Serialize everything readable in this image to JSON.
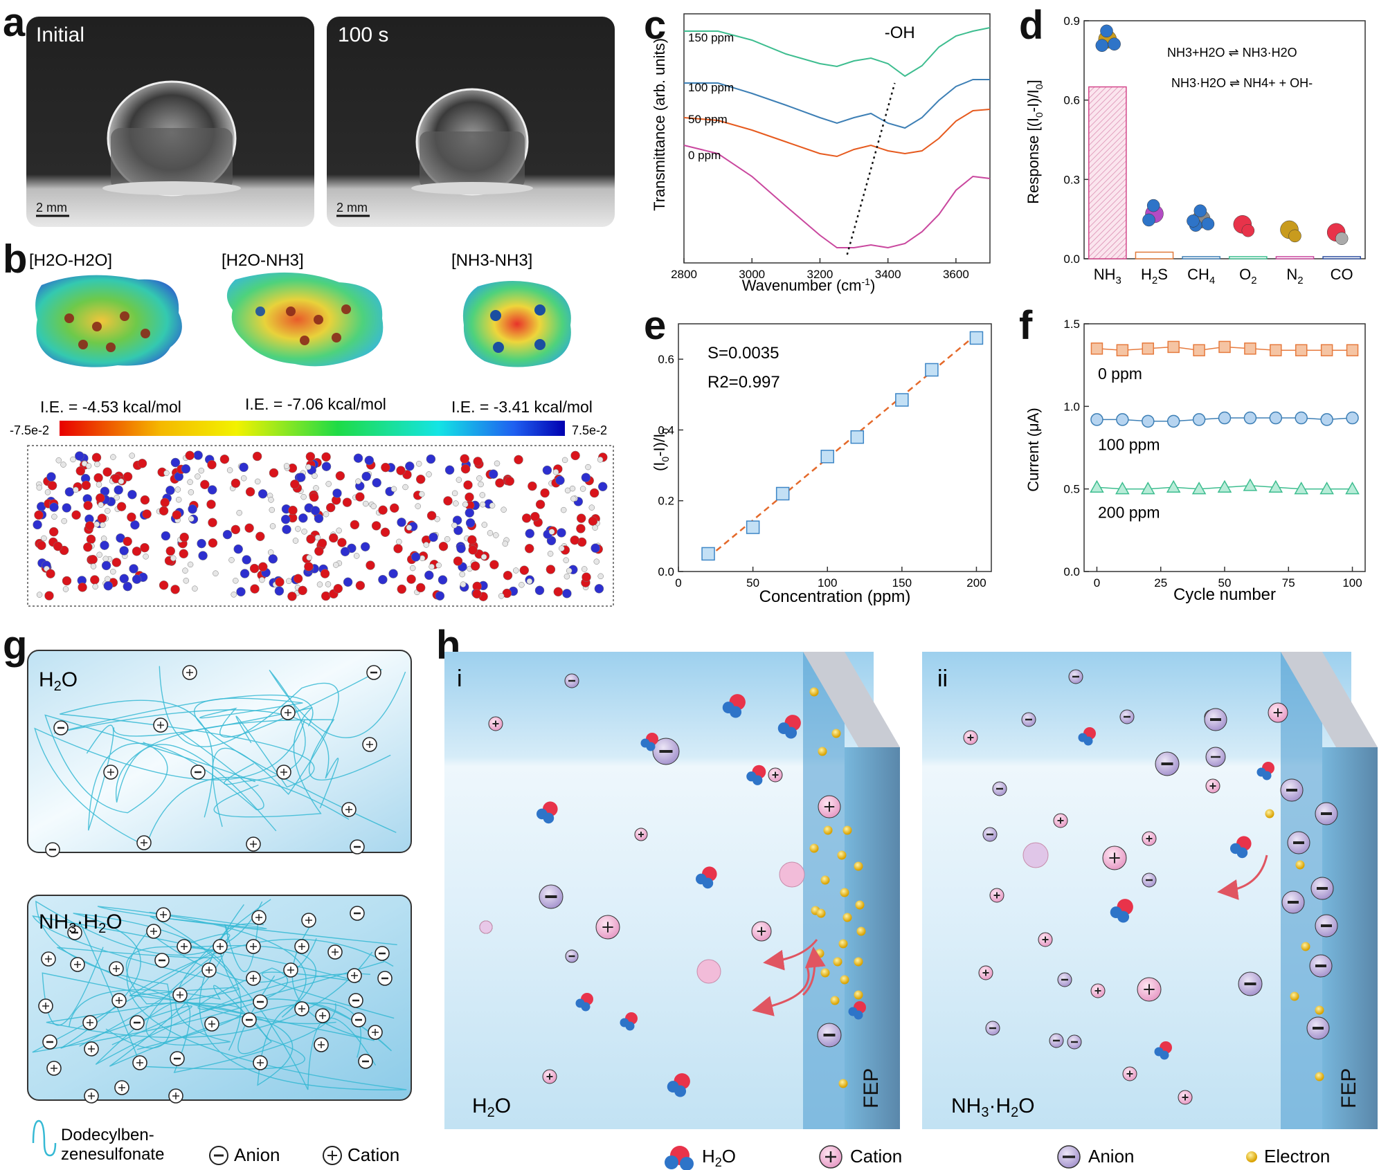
{
  "panels": {
    "a": {
      "label": "a",
      "left_title": "Initial",
      "right_title": "100 s",
      "scalebar": "2 mm"
    },
    "b": {
      "label": "b",
      "clusters": [
        {
          "title": "[H2O-H2O]",
          "ie": "I.E. = -4.53 kcal/mol"
        },
        {
          "title": "[H2O-NH3]",
          "ie": "I.E. = -7.06 kcal/mol"
        },
        {
          "title": "[NH3-NH3]",
          "ie": "I.E. = -3.41 kcal/mol"
        }
      ],
      "colorbar": {
        "min": "-7.5e-2",
        "max": "7.5e-2"
      }
    },
    "g": {
      "label": "g",
      "box1": "H2O",
      "box2": "NH3·H2O",
      "legend": {
        "chain": "Dodecylben-zenesulfonate",
        "chain_line1": "Dodecylben-",
        "chain_line2": "zenesulfonate",
        "anion": "Anion",
        "cation": "Cation"
      }
    },
    "h": {
      "label": "h",
      "sub_i": "i",
      "sub_ii": "ii",
      "bottom_i": "H2O",
      "bottom_ii": "NH3·H2O",
      "fep": "FEP",
      "legend": {
        "water": "H2O",
        "cation": "Cation",
        "anion": "Anion",
        "electron": "Electron"
      }
    }
  },
  "chart_data": [
    {
      "id": "c",
      "label": "c",
      "type": "line",
      "title": "",
      "xlabel": "Wavenumber (cm-1)",
      "ylabel": "Transmittance (arb. units)",
      "xlim": [
        2800,
        3700
      ],
      "xticks": [
        2800,
        3000,
        3200,
        3400,
        3600
      ],
      "annotation": "-OH",
      "series": [
        {
          "name": "150 ppm",
          "color": "#3dbd8f",
          "x": [
            2800,
            2900,
            3000,
            3100,
            3200,
            3250,
            3300,
            3350,
            3400,
            3450,
            3500,
            3550,
            3600,
            3650,
            3700
          ],
          "y": [
            3.85,
            3.85,
            3.72,
            3.52,
            3.38,
            3.34,
            3.42,
            3.46,
            3.38,
            3.2,
            3.35,
            3.62,
            3.78,
            3.85,
            3.9
          ]
        },
        {
          "name": "100 ppm",
          "color": "#3d7fb5",
          "x": [
            2800,
            2900,
            3000,
            3100,
            3200,
            3250,
            3300,
            3350,
            3400,
            3450,
            3500,
            3550,
            3600,
            3650,
            3700
          ],
          "y": [
            3.1,
            3.1,
            2.95,
            2.78,
            2.6,
            2.52,
            2.6,
            2.66,
            2.52,
            2.45,
            2.6,
            2.85,
            3.05,
            3.15,
            3.15
          ]
        },
        {
          "name": "50 ppm",
          "color": "#e65a1e",
          "x": [
            2800,
            2900,
            3000,
            3100,
            3200,
            3250,
            3300,
            3350,
            3400,
            3450,
            3500,
            3550,
            3600,
            3650,
            3700
          ],
          "y": [
            2.6,
            2.56,
            2.42,
            2.25,
            2.08,
            2.04,
            2.14,
            2.2,
            2.12,
            2.08,
            2.12,
            2.3,
            2.55,
            2.7,
            2.72
          ]
        },
        {
          "name": "0 ppm",
          "color": "#c9479e",
          "x": [
            2800,
            2900,
            3000,
            3100,
            3200,
            3250,
            3300,
            3350,
            3400,
            3450,
            3500,
            3550,
            3600,
            3650,
            3700
          ],
          "y": [
            2.2,
            2.08,
            1.75,
            1.32,
            0.9,
            0.72,
            0.72,
            0.76,
            0.72,
            0.78,
            0.95,
            1.2,
            1.55,
            1.75,
            1.72
          ]
        }
      ]
    },
    {
      "id": "d",
      "label": "d",
      "type": "bar",
      "title": "",
      "xlabel": "",
      "ylabel": "Response [(I0-I)/I0]",
      "ylim": [
        0,
        0.9
      ],
      "yticks": [
        0.0,
        0.3,
        0.6,
        0.9
      ],
      "categories": [
        "NH3",
        "H2S",
        "CH4",
        "O2",
        "N2",
        "CO"
      ],
      "values": [
        0.65,
        0.025,
        0.008,
        0.008,
        0.008,
        0.008
      ],
      "colors": [
        "#d4488c",
        "#e07a3b",
        "#3d7fb5",
        "#3dbd8f",
        "#c9479e",
        "#3050a0"
      ],
      "annotations": [
        "NH3+H2O ⇌ NH3·H2O",
        "NH3·H2O ⇌ NH4+ + OH-"
      ]
    },
    {
      "id": "e",
      "label": "e",
      "type": "scatter",
      "title": "",
      "xlabel": "Concentration (ppm)",
      "ylabel": "(I0-I)/I0",
      "xlim": [
        0,
        210
      ],
      "ylim": [
        0,
        0.7
      ],
      "xticks": [
        0,
        50,
        100,
        150,
        200
      ],
      "yticks": [
        0.0,
        0.2,
        0.4,
        0.6
      ],
      "x": [
        20,
        50,
        70,
        100,
        120,
        150,
        170,
        200
      ],
      "y": [
        0.05,
        0.125,
        0.22,
        0.325,
        0.38,
        0.485,
        0.57,
        0.66
      ],
      "fit": {
        "x": [
          20,
          200
        ],
        "y": [
          0.04,
          0.67
        ]
      },
      "annotations": [
        "S=0.0035",
        "R2=0.997"
      ]
    },
    {
      "id": "f",
      "label": "f",
      "type": "line",
      "title": "",
      "xlabel": "Cycle number",
      "ylabel": "Current (μA)",
      "xlim": [
        -5,
        105
      ],
      "ylim": [
        0,
        1.5
      ],
      "xticks": [
        0,
        25,
        50,
        75,
        100
      ],
      "yticks": [
        0.0,
        0.5,
        1.0,
        1.5
      ],
      "series": [
        {
          "name": "0 ppm",
          "color": "#e67a3d",
          "fill": "#f5c4a3",
          "marker": "square",
          "x": [
            0,
            10,
            20,
            30,
            40,
            50,
            60,
            70,
            80,
            90,
            100
          ],
          "y": [
            1.35,
            1.34,
            1.35,
            1.36,
            1.34,
            1.36,
            1.35,
            1.34,
            1.34,
            1.34,
            1.34
          ]
        },
        {
          "name": "100 ppm",
          "color": "#3d7fb5",
          "fill": "#b6d4f0",
          "marker": "circle",
          "x": [
            0,
            10,
            20,
            30,
            40,
            50,
            60,
            70,
            80,
            90,
            100
          ],
          "y": [
            0.92,
            0.92,
            0.91,
            0.91,
            0.92,
            0.93,
            0.93,
            0.93,
            0.93,
            0.92,
            0.93
          ]
        },
        {
          "name": "200 ppm",
          "color": "#3dbd8f",
          "fill": "#b8ecd8",
          "marker": "triangle",
          "x": [
            0,
            10,
            20,
            30,
            40,
            50,
            60,
            70,
            80,
            90,
            100
          ],
          "y": [
            0.51,
            0.5,
            0.5,
            0.51,
            0.5,
            0.51,
            0.52,
            0.51,
            0.5,
            0.5,
            0.5
          ]
        }
      ]
    }
  ]
}
